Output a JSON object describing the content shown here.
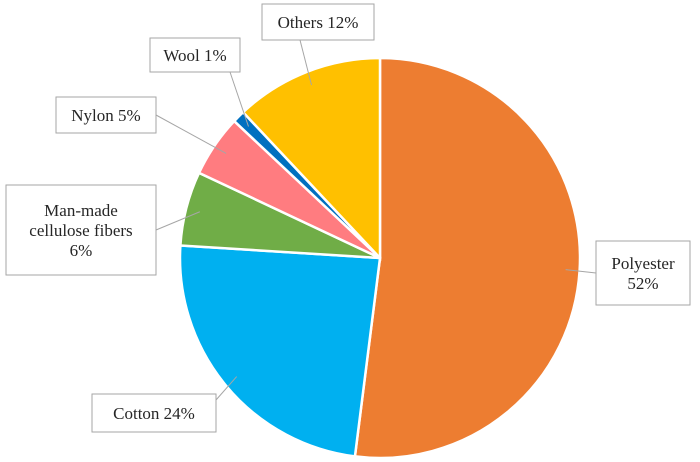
{
  "chart_data": {
    "type": "pie",
    "title": "",
    "start_angle_deg": 0,
    "direction": "clockwise",
    "slices": [
      {
        "key": "polyester",
        "lines": [
          "Polyester",
          "52%"
        ],
        "value": 52,
        "color": "#ED7D31"
      },
      {
        "key": "cotton",
        "lines": [
          "Cotton 24%"
        ],
        "value": 24,
        "color": "#00B0F0"
      },
      {
        "key": "cellulose",
        "lines": [
          "Man-made",
          "cellulose fibers",
          "6%"
        ],
        "value": 6,
        "color": "#70AD47"
      },
      {
        "key": "nylon",
        "lines": [
          "Nylon 5%"
        ],
        "value": 5,
        "color": "#FF7C80"
      },
      {
        "key": "wool",
        "lines": [
          "Wool 1%"
        ],
        "value": 1,
        "color": "#0070C0"
      },
      {
        "key": "others",
        "lines": [
          "Others 12%"
        ],
        "value": 12,
        "color": "#FFC000"
      }
    ],
    "legend": "none",
    "data_labels": "callouts"
  }
}
